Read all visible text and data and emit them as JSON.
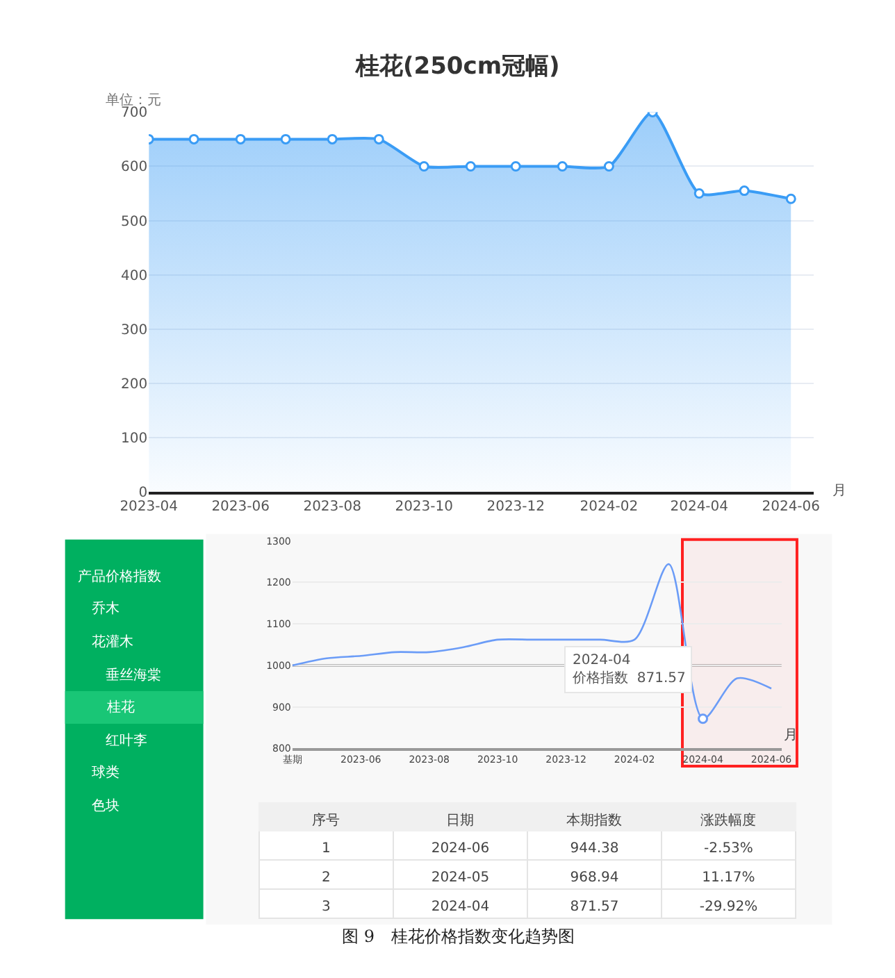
{
  "chart_data": [
    {
      "type": "area",
      "title": "桂花(250cm冠幅)",
      "ylabel": "单位：元",
      "xlabel": "月",
      "x": [
        "2023-04",
        "2023-05",
        "2023-06",
        "2023-07",
        "2023-08",
        "2023-09",
        "2023-10",
        "2023-11",
        "2023-12",
        "2024-01",
        "2024-02",
        "2024-03",
        "2024-04",
        "2024-05",
        "2024-06"
      ],
      "series": [
        {
          "color": "#3a9cf5",
          "values": [
            650,
            650,
            650,
            650,
            650,
            650,
            600,
            600,
            600,
            600,
            600,
            700,
            550,
            555,
            540
          ]
        }
      ],
      "xlim": [
        "2023-04-01",
        "2024-06-16"
      ],
      "ylim": [
        0,
        700
      ],
      "xticks": [
        "2023-04",
        "2023-06",
        "2023-08",
        "2023-10",
        "2023-12",
        "2024-02",
        "2024-04",
        "2024-06"
      ],
      "yticks": [
        0,
        100,
        200,
        300,
        400,
        500,
        600,
        700
      ],
      "grid": "y",
      "marker": "circle"
    },
    {
      "type": "other",
      "categories": [
        "产品价格指数",
        "乔木",
        "花灌木",
        "垂丝海棠",
        "桂花",
        "红叶李",
        "球类",
        "色块"
      ]
    },
    {
      "type": "line",
      "xlabel": "月",
      "categories": [
        "基期",
        null,
        "2023-06",
        null,
        "2023-08",
        null,
        "2023-10",
        null,
        "2023-12",
        null,
        "2024-02",
        null,
        "2024-04",
        null,
        "2024-06"
      ],
      "series": [
        {
          "color": "#6b9cf7",
          "values": [
            1000,
            1017,
            1023,
            1032,
            1032,
            1044,
            1062,
            1062,
            1062,
            1062,
            1062,
            1244,
            871.57,
            968.94,
            944.38
          ]
        }
      ],
      "ylim": [
        800,
        1300
      ],
      "yticks": [
        800,
        900,
        1000,
        1100,
        1200,
        1300
      ],
      "grid": "y",
      "marker": "none",
      "ref_lines": [
        {
          "axis": "y",
          "value": 1000,
          "color": "#bbbbbb"
        }
      ],
      "bands": [
        {
          "axis": "x",
          "from": "2024-04",
          "to": "2024-06",
          "color": "#ff2020"
        }
      ],
      "annotations": [
        {
          "text": "2024-04\n价格指数  871.57",
          "x": "2024-04",
          "y": 871.57
        }
      ]
    },
    {
      "type": "other",
      "categories": [
        "序号",
        "日期",
        "本期指数",
        "涨跌幅度"
      ],
      "cell_labels": [
        [
          "1",
          "2024-06",
          "944.38",
          "-2.53%"
        ],
        [
          "2",
          "2024-05",
          "968.94",
          "11.17%"
        ],
        [
          "3",
          "2024-04",
          "871.57",
          "-29.92%"
        ]
      ],
      "annotations": [
        "图 9　桂花价格指数变化趋势图"
      ]
    }
  ]
}
